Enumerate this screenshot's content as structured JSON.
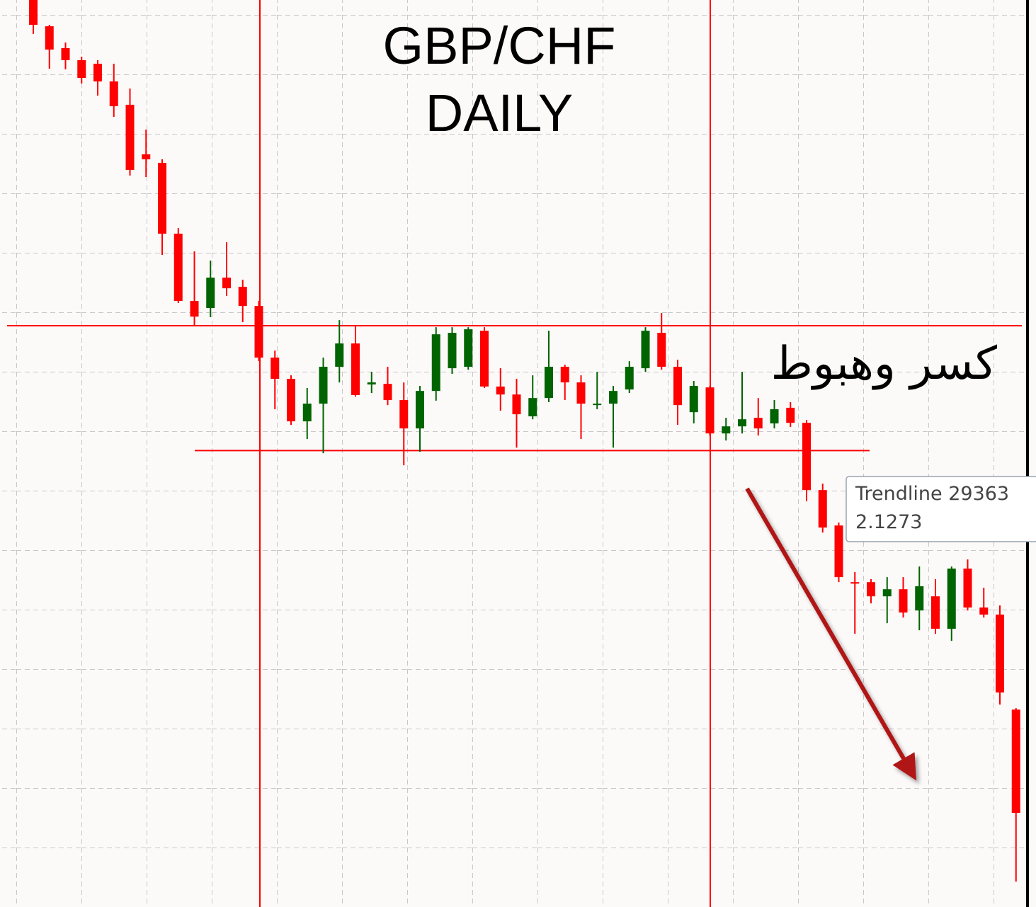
{
  "chart_data": {
    "type": "candlestick",
    "title": "GBP/CHF",
    "subtitle": "DAILY",
    "annotation": "كسر وهبوط",
    "ylim": [
      1.9726,
      2.28
    ],
    "up_color": "#006400",
    "down_color": "#ff0000",
    "open": [
      2.28,
      2.2711,
      2.2637,
      2.2596,
      2.2584,
      2.2524,
      2.2445,
      2.2277,
      2.2248,
      2.2008,
      2.178,
      2.1756,
      2.1859,
      2.1828,
      2.1763,
      2.1588,
      2.1516,
      2.1372,
      2.1432,
      2.1557,
      2.1636,
      2.1497,
      2.1499,
      2.1444,
      2.1348,
      2.1475,
      2.1552,
      2.1557,
      2.1679,
      2.149,
      2.1463,
      2.1389,
      2.1451,
      2.1557,
      2.1504,
      2.1427,
      2.1432,
      2.148,
      2.1552,
      2.1672,
      2.1557,
      2.1403,
      2.1487,
      2.1331,
      2.1355,
      2.1384,
      2.1365,
      2.1418,
      2.1367,
      2.1139,
      2.1019,
      2.0827,
      2.0827,
      2.0779,
      2.0803,
      2.0731,
      2.0779,
      2.0669,
      2.0873,
      2.0741,
      2.0717,
      2.0395
    ],
    "high": [
      2.28,
      2.2716,
      2.2656,
      2.2608,
      2.2596,
      2.2584,
      2.25,
      2.2361,
      2.226,
      2.2027,
      2.1948,
      2.1917,
      2.1979,
      2.1852,
      2.178,
      2.1612,
      2.1528,
      2.1485,
      2.1588,
      2.1715,
      2.1696,
      2.154,
      2.1557,
      2.1504,
      2.1492,
      2.1691,
      2.1691,
      2.1691,
      2.1691,
      2.1552,
      2.1516,
      2.1528,
      2.1679,
      2.1564,
      2.1528,
      2.154,
      2.1492,
      2.1576,
      2.1691,
      2.1739,
      2.1581,
      2.1509,
      2.1492,
      2.1384,
      2.154,
      2.1451,
      2.1444,
      2.1437,
      2.1377,
      2.1161,
      2.1029,
      2.0861,
      2.0837,
      2.0844,
      2.0844,
      2.088,
      2.0837,
      2.088,
      2.0904,
      2.0808,
      2.0748,
      2.04
    ],
    "low": [
      2.2685,
      2.2567,
      2.2565,
      2.2517,
      2.2476,
      2.2404,
      2.2205,
      2.22,
      2.1936,
      2.1773,
      2.1696,
      2.1725,
      2.1797,
      2.1708,
      2.1576,
      2.1413,
      2.136,
      2.1312,
      2.1264,
      2.1504,
      2.1456,
      2.1468,
      2.1427,
      2.1223,
      2.1269,
      2.1442,
      2.1533,
      2.1547,
      2.1485,
      2.1408,
      2.1283,
      2.1379,
      2.1437,
      2.1444,
      2.1312,
      2.1413,
      2.1283,
      2.1468,
      2.154,
      2.1547,
      2.136,
      2.1365,
      2.1324,
      2.1307,
      2.1331,
      2.1324,
      2.1348,
      2.1353,
      2.1101,
      2.0995,
      2.0827,
      2.0652,
      2.0755,
      2.0688,
      2.0707,
      2.0664,
      2.0652,
      2.0628,
      2.0731,
      2.0707,
      2.0412,
      1.9812
    ],
    "close": [
      2.2716,
      2.2632,
      2.2596,
      2.2536,
      2.2524,
      2.244,
      2.2224,
      2.226,
      2.2008,
      2.178,
      2.1727,
      2.1859,
      2.1823,
      2.1763,
      2.1588,
      2.1516,
      2.1372,
      2.1432,
      2.1557,
      2.1636,
      2.1461,
      2.1504,
      2.1444,
      2.1348,
      2.1475,
      2.1667,
      2.1672,
      2.1684,
      2.149,
      2.1463,
      2.1396,
      2.1451,
      2.1557,
      2.1504,
      2.1432,
      2.1432,
      2.1475,
      2.1557,
      2.1679,
      2.1557,
      2.1427,
      2.1492,
      2.1331,
      2.1355,
      2.1379,
      2.1348,
      2.1413,
      2.1367,
      2.1139,
      2.1012,
      2.0844,
      2.0822,
      2.0779,
      2.0803,
      2.0724,
      2.0813,
      2.0669,
      2.0873,
      2.0741,
      2.0717,
      2.0453,
      2.0045
    ],
    "trendlines": [
      {
        "value": 2.1696,
        "color": "#ff0000"
      },
      {
        "name": "Trendline 29363",
        "value": 2.1273,
        "color": "#ff0000"
      }
    ]
  }
}
